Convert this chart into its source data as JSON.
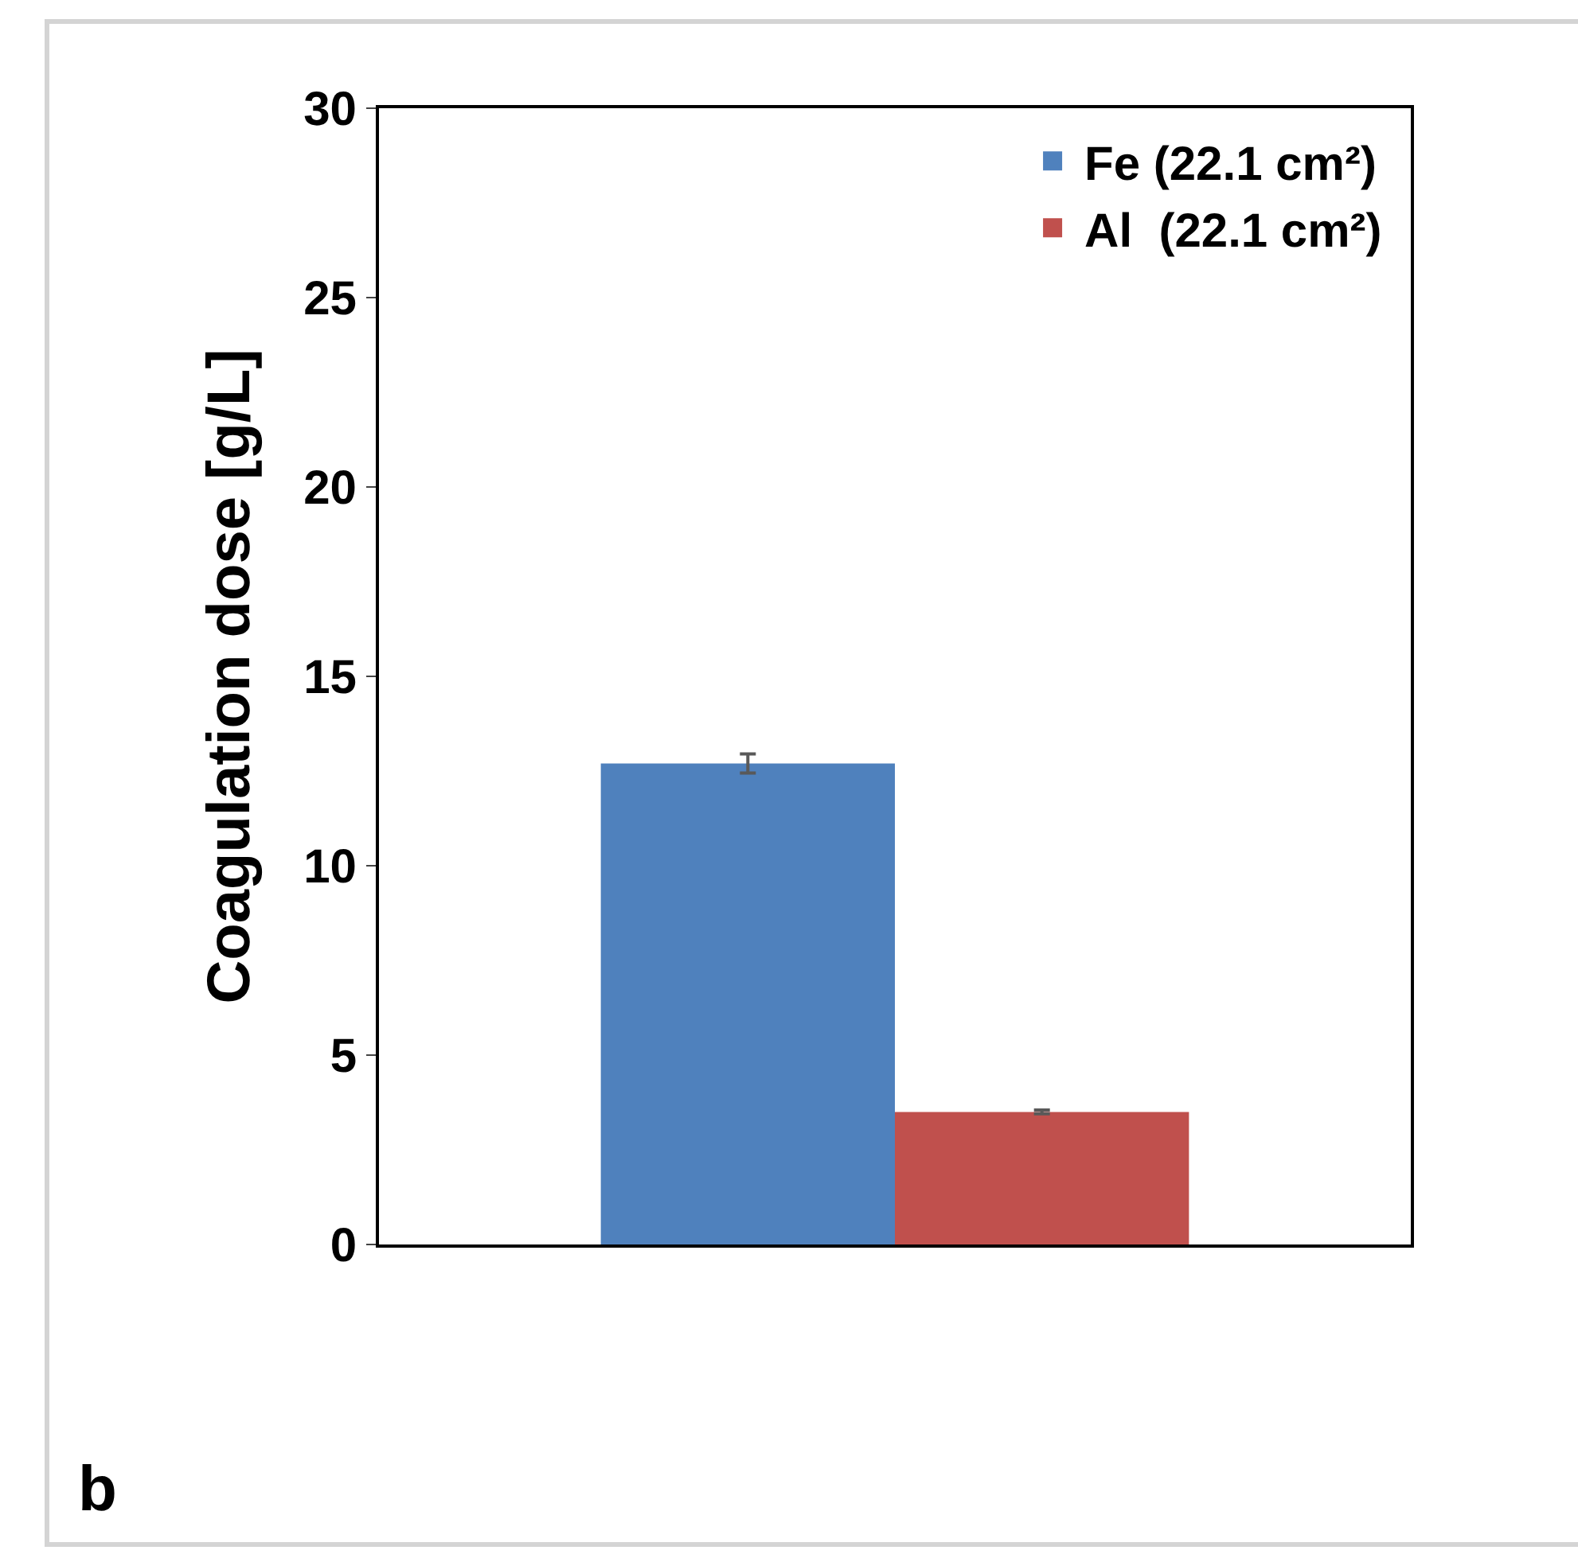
{
  "chart_data": {
    "type": "bar",
    "ylabel": "Coagulation dose [g/L]",
    "categories": [
      null
    ],
    "series": [
      {
        "name": "Fe (22.1 cm²)",
        "color": "#4f81bd",
        "values": [
          12.7
        ],
        "errors": [
          0.25
        ]
      },
      {
        "name": "Al  (22.1 cm²)",
        "color": "#c0504d",
        "values": [
          3.5
        ],
        "errors": [
          0.05
        ]
      }
    ],
    "ylim": [
      0,
      30
    ],
    "yticks": [
      0,
      5,
      10,
      15,
      20,
      25,
      30
    ],
    "grid": false,
    "legend": "top right",
    "annotations": [
      "b"
    ]
  }
}
